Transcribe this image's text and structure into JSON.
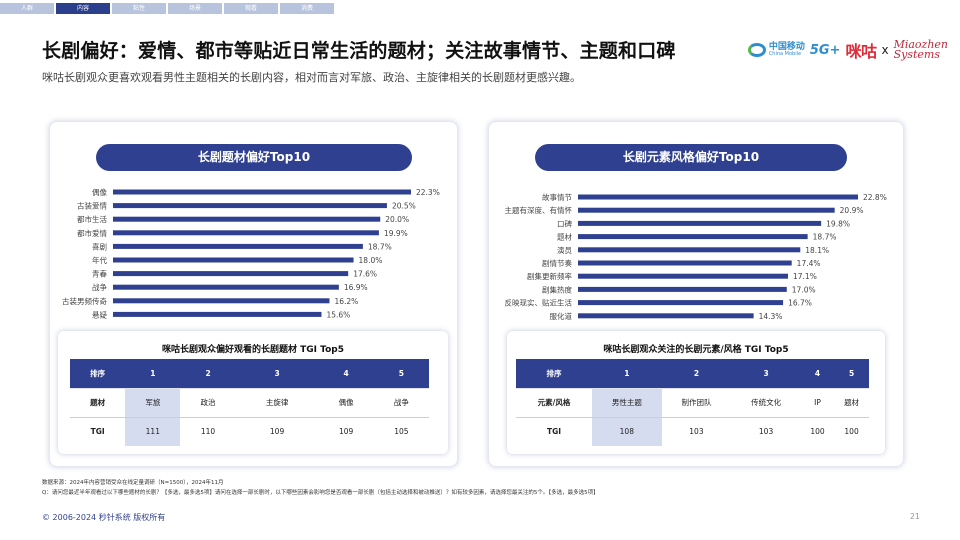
{
  "nav": {
    "tabs": [
      "人群",
      "内容",
      "粘性",
      "场景",
      "观看",
      "消费"
    ],
    "active_index": 1
  },
  "header": {
    "title": "长剧偏好：爱情、都市等贴近日常生活的题材；关注故事情节、主题和口碑",
    "subtitle": "咪咕长剧观众更喜欢观看男性主题相关的长剧内容，相对而言对军旅、政治、主旋律相关的长剧题材更感兴趣。"
  },
  "logos": {
    "china_mobile_cn": "中国移动",
    "china_mobile_en": "China Mobile",
    "five_g": "5G+",
    "migu": "咪咕",
    "separator": "x",
    "miaozhen_line1": "Miaozhen",
    "miaozhen_line2": "Systems"
  },
  "chart_data": [
    {
      "type": "bar",
      "orientation": "horizontal",
      "title": "长剧题材偏好Top10",
      "categories": [
        "偶像",
        "古装爱情",
        "都市生活",
        "都市爱情",
        "喜剧",
        "年代",
        "青春",
        "战争",
        "古装男频传奇",
        "悬疑"
      ],
      "values": [
        22.3,
        20.5,
        20.0,
        19.9,
        18.7,
        18.0,
        17.6,
        16.9,
        16.2,
        15.6
      ],
      "value_labels": [
        "22.3%",
        "20.5%",
        "20.0%",
        "19.9%",
        "18.7%",
        "18.0%",
        "17.6%",
        "16.9%",
        "16.2%",
        "15.6%"
      ],
      "unit": "%",
      "grid": false,
      "legend": "none",
      "bar_color": "#2f4090"
    },
    {
      "type": "bar",
      "orientation": "horizontal",
      "title": "长剧元素风格偏好Top10",
      "categories": [
        "故事情节",
        "主题有深度、有情怀",
        "口碑",
        "题材",
        "演员",
        "剧情节奏",
        "剧集更新频率",
        "剧集热度",
        "反映现实、贴近生活",
        "服化道"
      ],
      "values": [
        22.8,
        20.9,
        19.8,
        18.7,
        18.1,
        17.4,
        17.1,
        17.0,
        16.7,
        14.3
      ],
      "value_labels": [
        "22.8%",
        "20.9%",
        "19.8%",
        "18.7%",
        "18.1%",
        "17.4%",
        "17.1%",
        "17.0%",
        "16.7%",
        "14.3%"
      ],
      "unit": "%",
      "grid": false,
      "legend": "none",
      "bar_color": "#2f4090"
    },
    {
      "type": "table",
      "title": "咪咕长剧观众偏好观看的长剧题材 TGI Top5",
      "header": [
        "排序",
        "1",
        "2",
        "3",
        "4",
        "5"
      ],
      "rows": [
        [
          "题材",
          "军旅",
          "政治",
          "主旋律",
          "偶像",
          "战争"
        ],
        [
          "TGI",
          "111",
          "110",
          "109",
          "109",
          "105"
        ]
      ],
      "highlight_column": 1
    },
    {
      "type": "table",
      "title": "咪咕长剧观众关注的长剧元素/风格 TGI Top5",
      "header": [
        "排序",
        "1",
        "2",
        "3",
        "4",
        "5"
      ],
      "rows": [
        [
          "元素/风格",
          "男性主题",
          "制作团队",
          "传统文化",
          "IP",
          "题材"
        ],
        [
          "TGI",
          "108",
          "103",
          "103",
          "100",
          "100"
        ]
      ],
      "highlight_column": 1
    }
  ],
  "footnotes": {
    "source": "数据来源：2024年内容营销受众在线定量调研（N=1500），2024年11月",
    "question": "Q：请问您最近半年观看过以下哪些题材的长剧？【多选，最多选5项】请问在选择一部长剧时，以下哪些因素会影响您是否观看一部长剧（包括主动选择和被动推送）？如有较多因素，请选择您最关注的5个。【多选，最多选5项】"
  },
  "footer": {
    "copyright": "© 2006-2024 秒针系统 版权所有",
    "page_number": "21"
  },
  "colors": {
    "accent": "#2f4090",
    "highlight_cell": "#d6dcf0"
  }
}
